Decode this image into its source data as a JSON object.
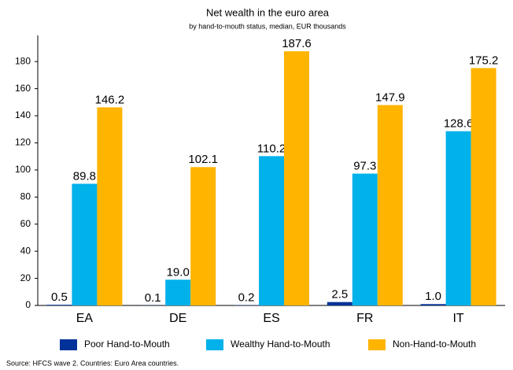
{
  "chart_data": {
    "type": "bar",
    "title": "Net wealth in the euro area",
    "subtitle": "by hand-to-mouth status, median, EUR thousands",
    "categories": [
      "EA",
      "DE",
      "ES",
      "FR",
      "IT"
    ],
    "series": [
      {
        "name": "Poor Hand-to-Mouth",
        "color": "#003299",
        "values": [
          0.5,
          0.1,
          0.2,
          2.5,
          1.0
        ],
        "value_labels": [
          "0.5",
          "0.1",
          "0.2",
          "2.5",
          "1.0"
        ]
      },
      {
        "name": "Wealthy Hand-to-Mouth",
        "color": "#00b1ea",
        "values": [
          89.8,
          19.0,
          110.2,
          97.3,
          128.6
        ],
        "value_labels": [
          "89.8",
          "19.0",
          "110.2",
          "97.3",
          "128.6"
        ]
      },
      {
        "name": "Non-Hand-to-Mouth",
        "color": "#ffb400",
        "values": [
          146.2,
          102.1,
          187.6,
          147.9,
          175.2
        ],
        "value_labels": [
          "146.2",
          "102.1",
          "187.6",
          "147.9",
          "175.2"
        ]
      }
    ],
    "ylim": [
      0,
      190
    ],
    "yticks": [
      0,
      20,
      40,
      60,
      80,
      100,
      120,
      140,
      160,
      180
    ],
    "grid": false,
    "legend": "bottom",
    "source": "Source: HFCS wave 2. Countries: Euro Area countries."
  }
}
